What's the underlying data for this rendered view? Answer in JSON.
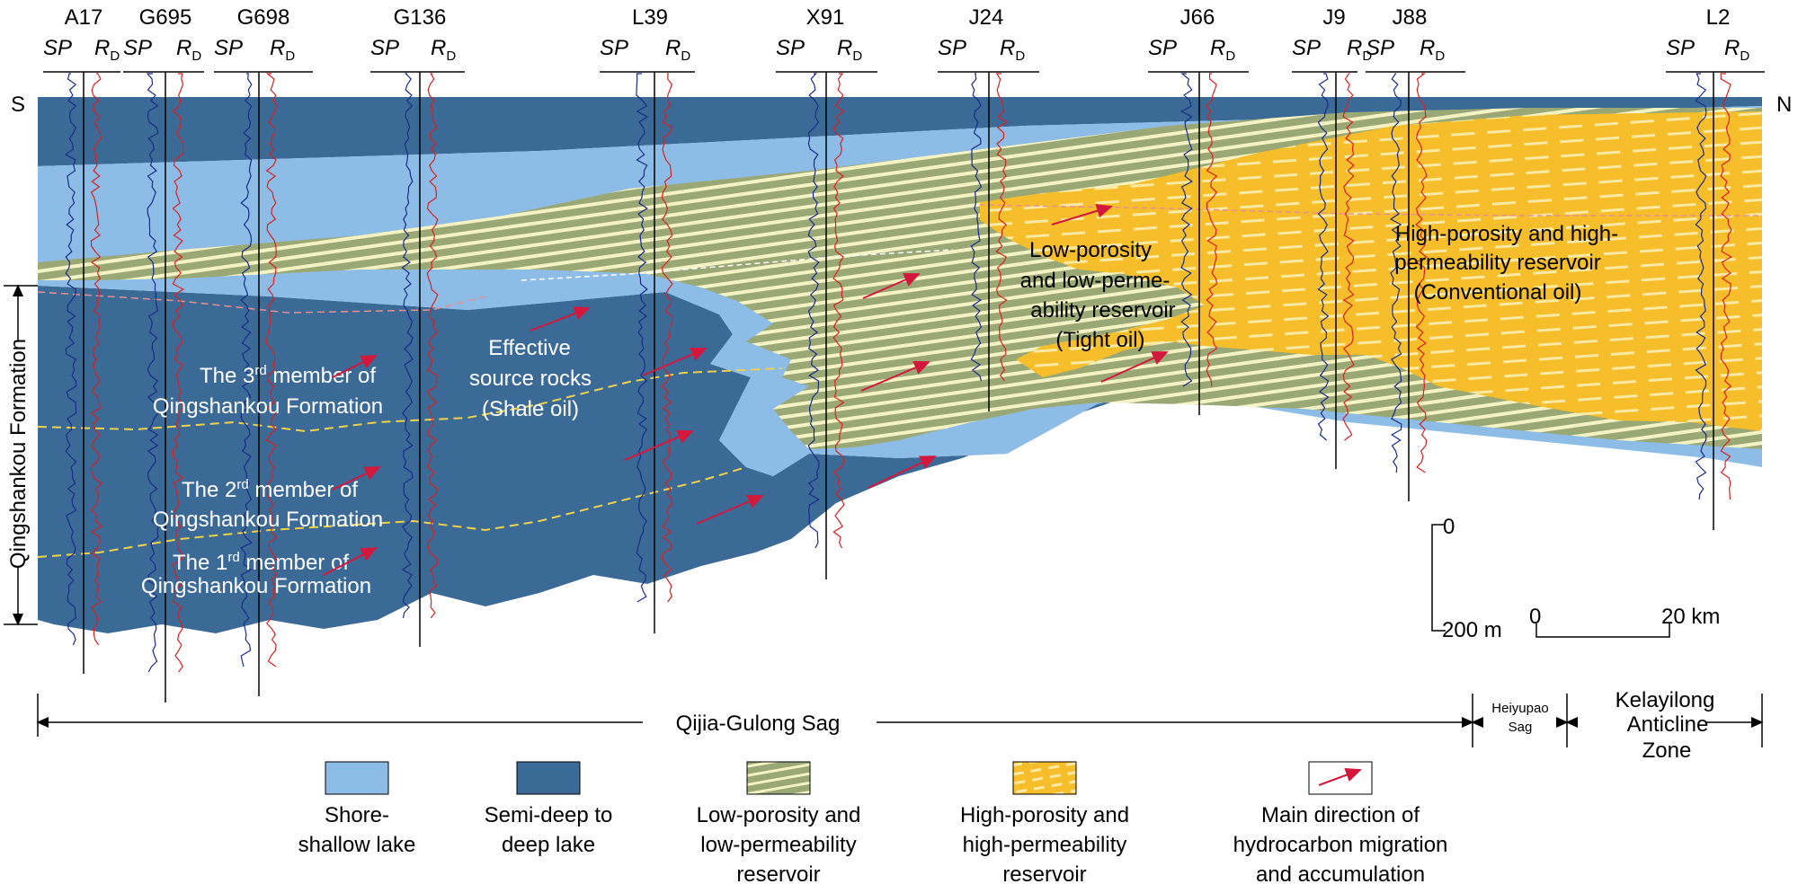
{
  "wells": [
    {
      "name": "A17"
    },
    {
      "name": "G695"
    },
    {
      "name": "G698"
    },
    {
      "name": "G136"
    },
    {
      "name": "L39"
    },
    {
      "name": "X91"
    },
    {
      "name": "J24"
    },
    {
      "name": "J66"
    },
    {
      "name": "J9"
    },
    {
      "name": "J88"
    },
    {
      "name": "L2"
    }
  ],
  "log_labels": {
    "sp": "SP",
    "rd_main": "R",
    "rd_sub": "D"
  },
  "compass": {
    "south": "S",
    "north": "N"
  },
  "formation_label": "Qingshankou Formation",
  "members": {
    "m3_line1_pre": "The 3",
    "m3_sup": "rd",
    "m3_line1_post": " member of",
    "m3_line2": "Qingshankou Formation",
    "m2_line1_pre": "The 2",
    "m2_sup": "rd",
    "m2_line1_post": " member of",
    "m2_line2": "Qingshankou Formation",
    "m1_line1_pre": "The 1",
    "m1_sup": "rd",
    "m1_line1_post": " member of",
    "m1_line2": "Qingshankou Formation"
  },
  "annotations": {
    "source_l1": "Effective",
    "source_l2": "source rocks",
    "source_l3": "(Shale oil)",
    "tight_l1": "Low-porosity",
    "tight_l2": "and low-perme-",
    "tight_l3": "ability reservoir",
    "tight_l4": "(Tight oil)",
    "conv_l1": "High-porosity and high-",
    "conv_l2": "permeability reservoir",
    "conv_l3": "(Conventional oil)"
  },
  "scale": {
    "v_top": "0",
    "v_bottom": "200 m",
    "h_left": "0",
    "h_right": "20 km"
  },
  "zones": {
    "qijia": "Qijia-Gulong Sag",
    "heiyupao_l1": "Heiyupao",
    "heiyupao_l2": "Sag",
    "kelayilong_l1": "Kelayilong",
    "kelayilong_l2": "Anticline",
    "kelayilong_l3": "Zone"
  },
  "legend": [
    {
      "key": "shore",
      "l1": "Shore-",
      "l2": "shallow lake",
      "l3": ""
    },
    {
      "key": "deep",
      "l1": "Semi-deep to",
      "l2": "deep lake",
      "l3": ""
    },
    {
      "key": "tight",
      "l1": "Low-porosity and",
      "l2": "low-permeability",
      "l3": "reservoir"
    },
    {
      "key": "conv",
      "l1": "High-porosity and",
      "l2": "high-permeability",
      "l3": "reservoir"
    },
    {
      "key": "migration",
      "l1": "Main direction of",
      "l2": "hydrocarbon migration",
      "l3": "and accumulation"
    }
  ],
  "colors": {
    "deep_lake": "#3b6a97",
    "shallow_lake": "#8dbde6",
    "tight_reservoir": "#9aa876",
    "tight_stripe": "#f5f3c3",
    "conventional": "#f6be2a",
    "conv_stripe": "#fbeaa3",
    "sp_curve": "#1a2a8a",
    "rd_curve": "#d92020",
    "migration_arrow": "#d4183c",
    "member_line": "#f0d24a"
  }
}
